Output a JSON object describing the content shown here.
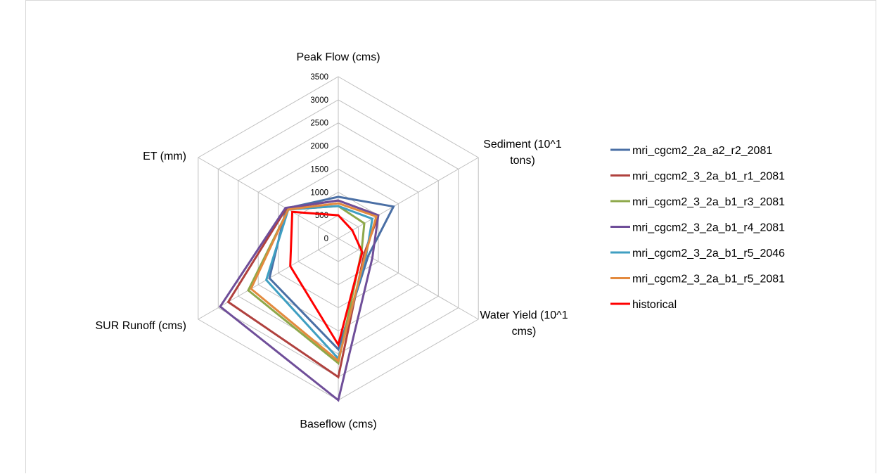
{
  "chart_data": {
    "type": "radar",
    "axes": [
      "Peak Flow (cms)",
      "Sediment (10^1 tons)",
      "Water Yield (10^1 cms)",
      "Baseflow (cms)",
      "SUR Runoff  (cms)",
      "ET (mm)"
    ],
    "rlim": [
      0,
      3500
    ],
    "ticks": [
      0,
      500,
      1000,
      1500,
      2000,
      2500,
      3000,
      3500
    ],
    "grid": true,
    "legend_position": "right",
    "series": [
      {
        "name": "mri_cgcm2_2a_a2_r2_2081",
        "color": "#4a6fa5",
        "values": [
          900,
          1380,
          750,
          2400,
          1720,
          1300
        ]
      },
      {
        "name": "mri_cgcm2_3_2a_b1_r1_2081",
        "color": "#b0413e",
        "values": [
          820,
          1000,
          650,
          3000,
          2750,
          1300
        ]
      },
      {
        "name": "mri_cgcm2_3_2a_b1_r3_2081",
        "color": "#8ea84a",
        "values": [
          700,
          650,
          580,
          2700,
          2250,
          1250
        ]
      },
      {
        "name": "mri_cgcm2_3_2a_b1_r4_2081",
        "color": "#6f4e99",
        "values": [
          820,
          1000,
          850,
          3500,
          2950,
          1320
        ]
      },
      {
        "name": "mri_cgcm2_3_2a_b1_r5_2046",
        "color": "#3f9fc2",
        "values": [
          700,
          850,
          700,
          2600,
          1800,
          1250
        ]
      },
      {
        "name": "mri_cgcm2_3_2a_b1_r5_2081",
        "color": "#e38a3e",
        "values": [
          760,
          950,
          680,
          2650,
          2180,
          1250
        ]
      },
      {
        "name": "historical",
        "color": "#ff0000",
        "values": [
          500,
          350,
          600,
          2300,
          1200,
          1150
        ]
      }
    ]
  }
}
